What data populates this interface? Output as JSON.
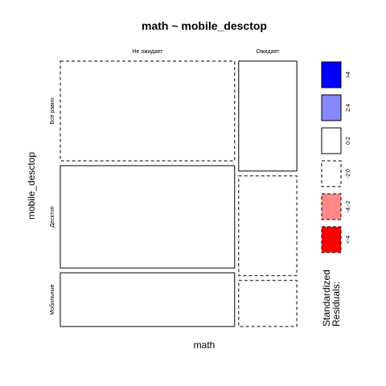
{
  "chart_data": {
    "type": "mosaic",
    "title": "math ~ mobile_desctop",
    "xlabel": "math",
    "ylabel": "mobile_desctop",
    "columns": [
      {
        "label": "Не ожидает",
        "cells": [
          {
            "row": "Всё равно",
            "fill": "#ffffff",
            "dashed": true,
            "share": 0.39
          },
          {
            "row": "Десктоп",
            "fill": "#ffffff",
            "dashed": false,
            "share": 0.4
          },
          {
            "row": "Мобильные",
            "fill": "#ffffff",
            "dashed": false,
            "share": 0.21
          }
        ]
      },
      {
        "label": "Ожидает",
        "cells": [
          {
            "row": "Всё равно",
            "fill": "#ffffff",
            "dashed": false,
            "share": 0.43
          },
          {
            "row": "Десктоп",
            "fill": "#ffffff",
            "dashed": true,
            "share": 0.39
          },
          {
            "row": "Мобильные",
            "fill": "#ffffff",
            "dashed": true,
            "share": 0.18
          }
        ]
      }
    ],
    "column_shares": [
      0.75,
      0.25
    ],
    "rows": [
      "Всё равно",
      "Десктоп",
      "Мобильные"
    ],
    "legend": {
      "title": "Standardized\nResiduals:",
      "entries": [
        {
          "label": ">4",
          "fill": "#0000ff",
          "dashed": false
        },
        {
          "label": "2:4",
          "fill": "#8888ff",
          "dashed": false
        },
        {
          "label": "0:2",
          "fill": "#ffffff",
          "dashed": false
        },
        {
          "label": "-2:0",
          "fill": "#ffffff",
          "dashed": true
        },
        {
          "label": "-4:-2",
          "fill": "#ff8888",
          "dashed": true
        },
        {
          "label": "<-4",
          "fill": "#ff0000",
          "dashed": true
        }
      ]
    }
  }
}
